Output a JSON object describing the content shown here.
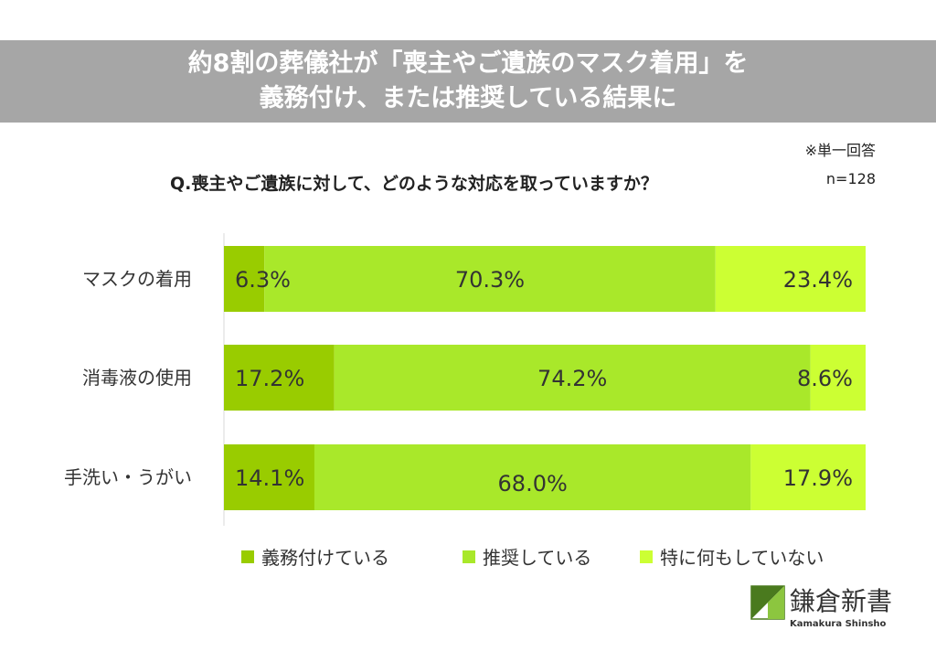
{
  "header": {
    "title_line1": "約8割の葬儀社が「喪主やご遺族のマスク着用」を",
    "title_line2": "義務付け、または推奨している結果に"
  },
  "notes": {
    "single_answer": "※単一回答",
    "sample_size": "n=128"
  },
  "question": "Q.喪主やご遺族に対して、どのような対応を取っていますか？",
  "colors": {
    "series_0": "#99cc00",
    "series_1": "#a9e82a",
    "series_2": "#ccff33"
  },
  "chart_data": {
    "type": "bar",
    "orientation": "horizontal",
    "stacked": true,
    "normalized": true,
    "categories": [
      "マスクの着用",
      "消毒液の使用",
      "手洗い・うがい"
    ],
    "series": [
      {
        "name": "義務付けている",
        "values": [
          6.3,
          17.2,
          14.1
        ],
        "labels": [
          "6.3%",
          "17.2%",
          "14.1%"
        ]
      },
      {
        "name": "推奨している",
        "values": [
          70.3,
          74.2,
          68.0
        ],
        "labels": [
          "70.3%",
          "74.2%",
          "68.0%"
        ]
      },
      {
        "name": "特に何もしていない",
        "values": [
          23.4,
          8.6,
          17.9
        ],
        "labels": [
          "23.4%",
          "8.6%",
          "17.9%"
        ]
      }
    ],
    "xlim": [
      0,
      100
    ],
    "legend_position": "bottom",
    "grid": false
  },
  "logo": {
    "name": "鎌倉新書",
    "subtitle": "Kamakura Shinsho",
    "mark_colors": [
      "#4a7a1e",
      "#8cc63f"
    ]
  }
}
